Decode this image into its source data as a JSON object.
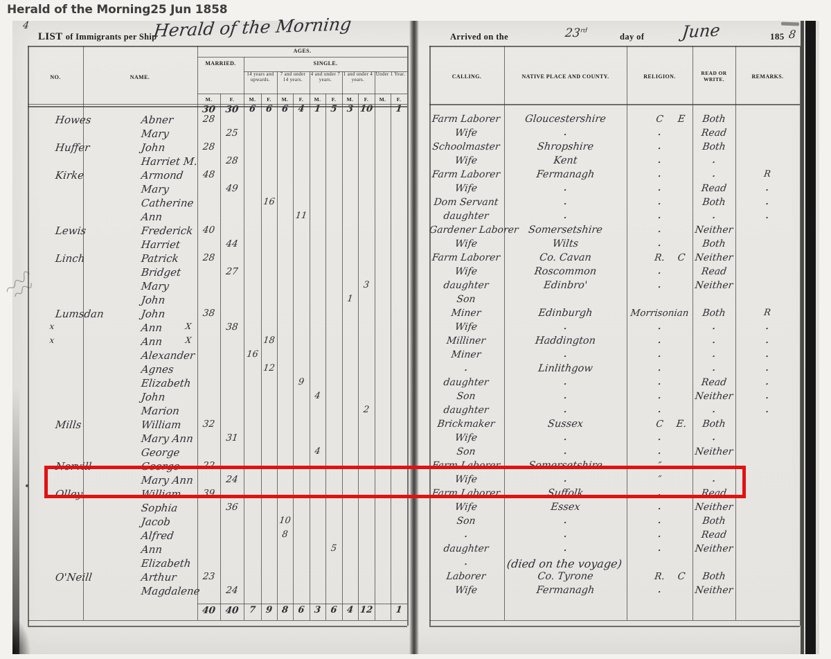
{
  "page_header": {
    "title": "Herald of the Morning",
    "date": "25 Jun 1858"
  },
  "document": {
    "page_number": "4",
    "list_word": "LIST",
    "list_rest": "of Immigrants per Ship",
    "ship_name_script": "Herald of the Morning",
    "arrived_printed": "Arrived on the",
    "arrived_day": "23",
    "arrived_day_suffix": "rd",
    "day_of_printed": "day of",
    "month_script": "June",
    "year_printed": "185",
    "year_script_digit": "8"
  },
  "left_table": {
    "headers": {
      "no": "NO.",
      "name": "NAME.",
      "ages": "AGES.",
      "married": "MARRIED.",
      "single": "SINGLE.",
      "age_groups": [
        "14 years and upwards.",
        "7 and under 14 years.",
        "4 and under 7 years.",
        "1 and under 4 years.",
        "Under 1 Year."
      ],
      "m": "M.",
      "f": "F."
    }
  },
  "right_table": {
    "headers": {
      "calling": "CALLING.",
      "native": "NATIVE PLACE AND COUNTY.",
      "religion": "RELIGION.",
      "read_write": "READ OR WRITE.",
      "remarks": "REMARKS."
    }
  },
  "totals_top": {
    "m_m": "30",
    "m_f": "30",
    "s14_m": "6",
    "s14_f": "6",
    "s7_m": "6",
    "s7_f": "4",
    "s4_m": "1",
    "s4_f": "5",
    "s1_m": "3",
    "s1_f": "10",
    "u1_f": "1"
  },
  "totals_bottom": {
    "m_m": "40",
    "m_f": "40",
    "s14_m": "7",
    "s14_f": "9",
    "s7_m": "8",
    "s7_f": "6",
    "s4_m": "3",
    "s4_f": "6",
    "s1_m": "4",
    "s1_f": "12",
    "u1_f": "1"
  },
  "rows": [
    {
      "surname": "Howes",
      "forename": "Abner",
      "m_m": "28",
      "calling": "Farm Laborer",
      "native": "Gloucestershire",
      "religion": "C",
      "religion2": "E",
      "read_write": "Both"
    },
    {
      "forename": "Mary",
      "m_f": "25",
      "calling": "Wife",
      "native": ".",
      "religion": ".",
      "read_write": "Read"
    },
    {
      "surname": "Huffer",
      "forename": "John",
      "m_m": "28",
      "calling": "Schoolmaster",
      "native": "Shropshire",
      "religion": ".",
      "read_write": "Both"
    },
    {
      "forename": "Harriet M.",
      "m_f": "28",
      "calling": "Wife",
      "native": "Kent",
      "religion": ".",
      "read_write": ".",
      "remark_margin": "."
    },
    {
      "surname": "Kirke",
      "forename": "Armond",
      "m_m": "48",
      "calling": "Farm Laborer",
      "native": "Fermanagh",
      "religion": ".",
      "read_write": ".",
      "remark": "R",
      "remark_margin": "R"
    },
    {
      "forename": "Mary",
      "m_f": "49",
      "calling": "Wife",
      "native": ".",
      "religion": ".",
      "read_write": "Read",
      "remark": ".",
      "remark_margin": "."
    },
    {
      "forename": "Catherine",
      "s14_f": "16",
      "calling": "Dom Servant",
      "native": ".",
      "religion": ".",
      "read_write": "Both",
      "remark": ".",
      "remark_margin": "."
    },
    {
      "forename": "Ann",
      "s7_f": "11",
      "calling": "daughter",
      "native": ".",
      "religion": ".",
      "read_write": ".",
      "remark": ".",
      "remark_margin": "."
    },
    {
      "surname": "Lewis",
      "forename": "Frederick",
      "m_m": "40",
      "calling": "Gardener Laborer",
      "native": "Somersetshire",
      "religion": ".",
      "read_write": "Neither"
    },
    {
      "forename": "Harriet",
      "m_f": "44",
      "calling": "Wife",
      "native": "Wilts",
      "religion": ".",
      "read_write": "Both"
    },
    {
      "surname": "Linch",
      "forename": "Patrick",
      "m_m": "28",
      "calling": "Farm Laborer",
      "native": "Co. Cavan",
      "religion": "R.",
      "religion2": "C",
      "read_write": "Neither"
    },
    {
      "forename": "Bridget",
      "m_f": "27",
      "calling": "Wife",
      "native": "Roscommon",
      "religion": ".",
      "read_write": "Read"
    },
    {
      "forename": "Mary",
      "s1_f": "3",
      "calling": "daughter",
      "native": "Edinbro'",
      "religion": ".",
      "read_write": "Neither"
    },
    {
      "forename": "John",
      "s1_m": "1",
      "calling": "Son"
    },
    {
      "surname": "Lumsdan",
      "forename": "John",
      "m_m": "38",
      "calling": "Miner",
      "native": "Edinburgh",
      "religion": "Morrisonian",
      "read_write": "Both",
      "remark": "R",
      "remark_margin": "R"
    },
    {
      "no_mark": "x",
      "forename": "Ann",
      "name_mark": "X",
      "m_f": "38",
      "calling": "Wife",
      "native": ".",
      "religion": ".",
      "read_write": ".",
      "remark": ".",
      "remark_margin": "."
    },
    {
      "no_mark": "x",
      "forename": "Ann",
      "name_mark": "X",
      "s14_f": "18",
      "calling": "Milliner",
      "native": "Haddington",
      "religion": ".",
      "read_write": ".",
      "remark": ".",
      "remark_margin": "."
    },
    {
      "forename": "Alexander",
      "s14_m": "16",
      "calling": "Miner",
      "native": ".",
      "religion": ".",
      "read_write": ".",
      "remark": ".",
      "remark_margin": "."
    },
    {
      "forename": "Agnes",
      "s14_f": "12",
      "calling": ".",
      "native": "Linlithgow",
      "religion": ".",
      "read_write": ".",
      "remark": ".",
      "remark_margin": "."
    },
    {
      "forename": "Elizabeth",
      "s7_f": "9",
      "calling": "daughter",
      "native": ".",
      "religion": ".",
      "read_write": "Read",
      "remark": ".",
      "remark_margin": "."
    },
    {
      "forename": "John",
      "s4_m": "4",
      "calling": "Son",
      "native": ".",
      "religion": ".",
      "read_write": "Neither",
      "remark": ".",
      "remark_margin": "."
    },
    {
      "forename": "Marion",
      "s1_f": "2",
      "calling": "daughter",
      "native": ".",
      "religion": ".",
      "read_write": ".",
      "remark": ".",
      "remark_margin": "."
    },
    {
      "surname": "Mills",
      "forename": "William",
      "m_m": "32",
      "calling": "Brickmaker",
      "native": "Sussex",
      "religion": "C",
      "religion2": "E.",
      "read_write": "Both"
    },
    {
      "forename": "Mary Ann",
      "m_f": "31",
      "calling": "Wife",
      "native": ".",
      "religion": ".",
      "read_write": "."
    },
    {
      "forename": "George",
      "s4_m": "4",
      "calling": "Son",
      "native": ".",
      "religion": ".",
      "read_write": "Neither"
    },
    {
      "surname": "Norvill",
      "forename": "George",
      "m_m": "22",
      "calling": "Farm Laborer",
      "native": "Somersetshire",
      "religion": "″",
      "read_write": ".",
      "highlighted": true
    },
    {
      "forename": "Mary Ann",
      "m_f": "24",
      "calling": "Wife",
      "native": ".",
      "religion": "″",
      "read_write": ".",
      "highlighted": true
    },
    {
      "surname": "Olley",
      "forename": "William",
      "m_m": "39",
      "calling": "Farm Laborer",
      "native": "Suffolk",
      "religion": ".",
      "read_write": "Read"
    },
    {
      "forename": "Sophia",
      "m_f": "36",
      "calling": "Wife",
      "native": "Essex",
      "religion": ".",
      "read_write": "Neither"
    },
    {
      "forename": "Jacob",
      "s7_m": "10",
      "calling": "Son",
      "native": ".",
      "religion": ".",
      "read_write": "Both"
    },
    {
      "forename": "Alfred",
      "s7_m": "8",
      "calling": ".",
      "native": ".",
      "religion": ".",
      "read_write": "Read"
    },
    {
      "forename": "Ann",
      "s4_f": "5",
      "calling": "daughter",
      "native": ".",
      "religion": ".",
      "read_write": "Neither"
    },
    {
      "forename": "Elizabeth",
      "calling": ".",
      "native_wide": "(died on the voyage)"
    },
    {
      "surname": "O'Neill",
      "forename": "Arthur",
      "m_m": "23",
      "calling": "Laborer",
      "native": "Co. Tyrone",
      "religion": "R.",
      "religion2": "C",
      "read_write": "Both"
    },
    {
      "forename": "Magdalene",
      "m_f": "24",
      "calling": "Wife",
      "native": "Fermanagh",
      "religion": ".",
      "read_write": "Neither"
    }
  ],
  "highlight": {
    "color": "#e01212"
  }
}
